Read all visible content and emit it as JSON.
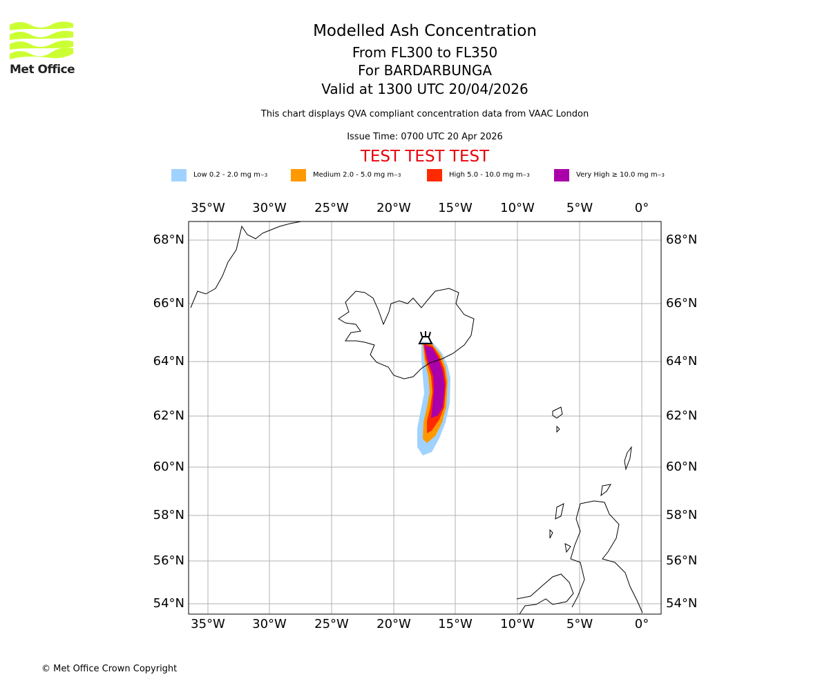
{
  "header": {
    "title": "Modelled Ash Concentration",
    "levels": "From FL300 to FL350",
    "volcano": "For BARDARBUNGA",
    "valid": "Valid at 1300 UTC 20/04/2026",
    "subtitle": "This chart displays QVA compliant concentration data from VAAC London",
    "issue_time": "Issue Time: 0700 UTC 20 Apr 2026",
    "test_banner": "TEST TEST TEST"
  },
  "logo": {
    "text": "Met Office",
    "color": "#ccff33"
  },
  "legend": [
    {
      "label": "Low 0.2 - 2.0 mg m",
      "color": "#a0d2ff"
    },
    {
      "label": "Medium 2.0 - 5.0 mg m",
      "color": "#ff9900"
    },
    {
      "label": "High 5.0 - 10.0 mg m",
      "color": "#ff2a00"
    },
    {
      "label": "Very High ≥ 10.0 mg m",
      "color": "#aa00aa"
    }
  ],
  "legend_exponent": "−3",
  "map": {
    "lon_labels": [
      "35°W",
      "30°W",
      "25°W",
      "20°W",
      "15°W",
      "10°W",
      "5°W",
      "0°"
    ],
    "lat_labels": [
      "68°N",
      "66°N",
      "64°N",
      "62°N",
      "60°N",
      "58°N",
      "56°N",
      "54°N"
    ]
  },
  "footer": {
    "copyright": "© Met Office Crown Copyright"
  }
}
